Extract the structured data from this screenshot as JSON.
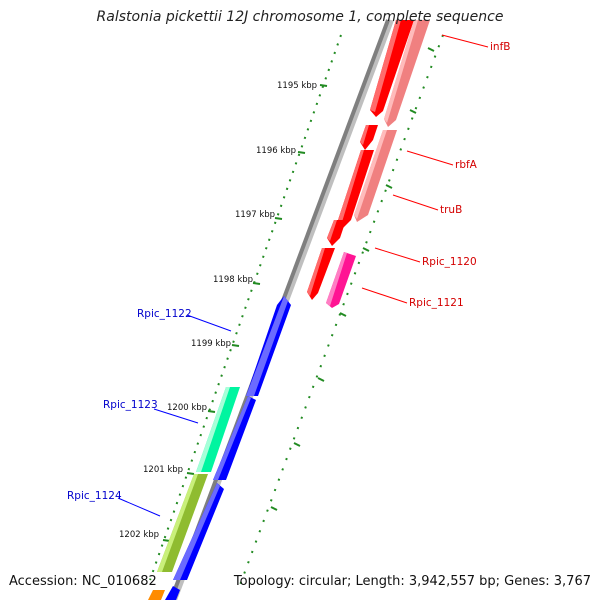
{
  "title": "Ralstonia pickettii 12J chromosome 1, complete sequence",
  "accession": "Accession: NC_010682",
  "summary": "Topology: circular; Length: 3,942,557 bp; Genes: 3,767",
  "ticks": [
    "1195 kbp",
    "1196 kbp",
    "1197 kbp",
    "1198 kbp",
    "1199 kbp",
    "1200 kbp",
    "1201 kbp",
    "1202 kbp"
  ],
  "genes": {
    "infB": "infB",
    "rbfA": "rbfA",
    "truB": "truB",
    "rpic1120": "Rpic_1120",
    "rpic1121": "Rpic_1121",
    "rpic1122": "Rpic_1122",
    "rpic1123": "Rpic_1123",
    "rpic1124": "Rpic_1124"
  },
  "colors": {
    "forward_gene": "#ff0000",
    "forward_gene_light": "#f08080",
    "forward_gene_pink": "#ff1493",
    "reverse_gene": "#0000ff",
    "reverse_gene_teal": "#00f5a0",
    "reverse_gene_olive": "#8fbc30",
    "reverse_gene_orange": "#ff8c00",
    "backbone": "#7f7f7f",
    "tick_dots": "#228b22",
    "label_red": "#d40000",
    "label_blue": "#0000cc"
  }
}
